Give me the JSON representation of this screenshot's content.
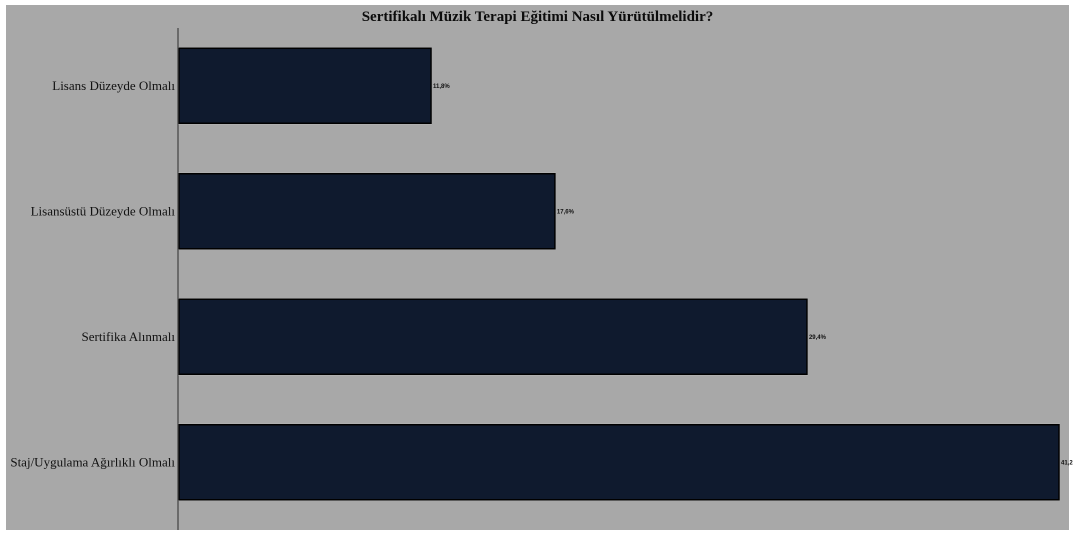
{
  "chart_data": {
    "type": "bar",
    "orientation": "horizontal",
    "title": "Sertifikalı Müzik Terapi Eğitimi Nasıl Yürütülmelidir?",
    "xlabel": "",
    "ylabel": "",
    "categories": [
      "Lisans Düzeyde Olmalı",
      "Lisansüstü Düzeyde Olmalı",
      "Sertifika Alınmalı",
      "Staj/Uygulama Ağırlıklı Olmalı"
    ],
    "values": [
      11.8,
      17.6,
      29.4,
      41.2
    ],
    "value_labels": [
      "11,8%",
      "17,6%",
      "29,4%",
      "41,2"
    ],
    "xlim": [
      0,
      41.2
    ],
    "grid": false,
    "legend": "none",
    "colors": {
      "bar": "#0f1a2e",
      "bar_edge": "#000000",
      "background": "#a8a8a8",
      "frame": "#ffffff",
      "axis": "#555555"
    }
  }
}
